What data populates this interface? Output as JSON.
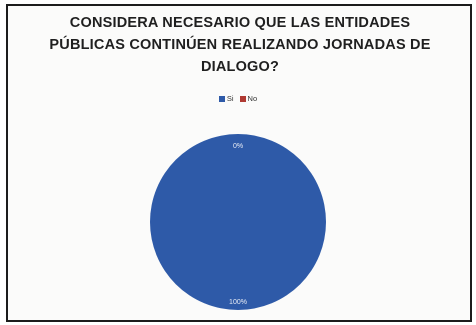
{
  "chart_data": {
    "type": "pie",
    "title": "CONSIDERA NECESARIO QUE LAS ENTIDADES PÚBLICAS CONTINÚEN REALIZANDO JORNADAS DE DIALOGO?",
    "title_lines": [
      "CONSIDERA NECESARIO QUE LAS ENTIDADES",
      "PÚBLICAS CONTINÚEN REALIZANDO JORNADAS DE",
      "DIALOGO?"
    ],
    "categories": [
      "Si",
      "No"
    ],
    "values": [
      100,
      0
    ],
    "data_labels": [
      "100%",
      "0%"
    ],
    "colors": [
      "#2e5aa8",
      "#b03a32"
    ],
    "legend_placement": "top"
  }
}
